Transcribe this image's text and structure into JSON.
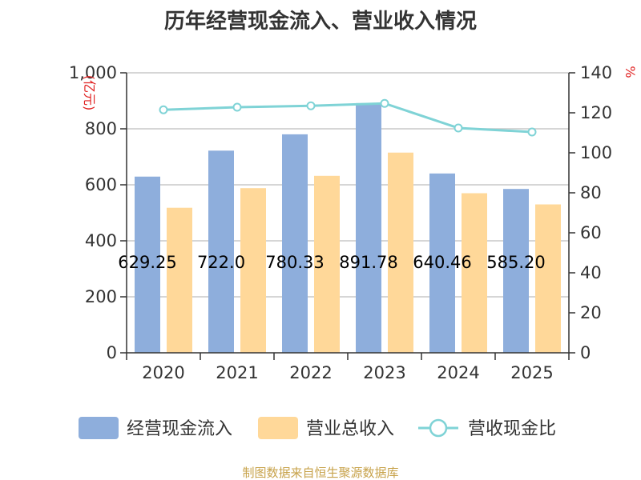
{
  "chart_data": {
    "type": "bar",
    "title": "历年经营现金流入、营业收入情况",
    "categories": [
      "2020",
      "2021",
      "2022",
      "2023",
      "2024",
      "2025"
    ],
    "series": [
      {
        "name": "经营现金流入",
        "type": "bar",
        "axis": "left",
        "values": [
          629.25,
          722.0,
          780.33,
          891.78,
          640.46,
          585.2
        ],
        "data_labels": [
          "629.25",
          "722.0",
          "780.33",
          "891.78",
          "640.46",
          "585.20"
        ]
      },
      {
        "name": "营业总收入",
        "type": "bar",
        "axis": "left",
        "values": [
          518,
          588,
          632,
          715,
          570,
          530
        ]
      },
      {
        "name": "营收现金比",
        "type": "line",
        "axis": "right",
        "values": [
          121.5,
          122.8,
          123.5,
          124.7,
          112.4,
          110.4
        ]
      }
    ],
    "y_left": {
      "unit": "(亿元)",
      "ylim": [
        0,
        1000
      ],
      "ticks": [
        0,
        200,
        400,
        600,
        800,
        1000
      ],
      "tick_labels": [
        "0",
        "200",
        "400",
        "600",
        "800",
        "1,000"
      ]
    },
    "y_right": {
      "unit": "%",
      "ylim": [
        0,
        140
      ],
      "ticks": [
        0,
        20,
        40,
        60,
        80,
        100,
        120,
        140
      ],
      "tick_labels": [
        "0",
        "20",
        "40",
        "60",
        "80",
        "100",
        "120",
        "140"
      ]
    },
    "grid": true,
    "legend": "bottom",
    "colors": {
      "cash_in": "#8eaedc",
      "revenue": "#ffd899",
      "ratio": "#7fd3d6",
      "grid": "#c8c8c8"
    },
    "source": "制图数据来自恒生聚源数据库"
  }
}
